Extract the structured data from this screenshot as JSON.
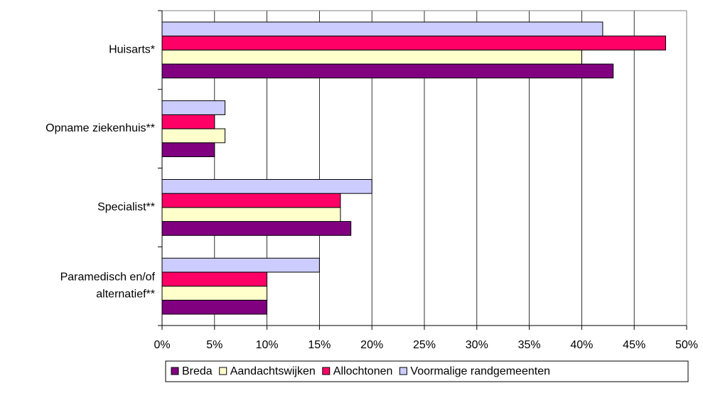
{
  "chart_data": {
    "type": "hbar",
    "categories": [
      "Huisarts*",
      "Opname ziekenhuis**",
      "Specialist**",
      "Paramedisch en/of alternatief**"
    ],
    "series": [
      {
        "name": "Breda",
        "color": "#800080",
        "values": [
          43,
          5,
          18,
          10
        ]
      },
      {
        "name": "Aandachtswijken",
        "color": "#ffffcc",
        "values": [
          40,
          6,
          17,
          10
        ]
      },
      {
        "name": "Allochtonen",
        "color": "#ff0066",
        "values": [
          48,
          5,
          17,
          10
        ]
      },
      {
        "name": "Voormalige randgemeenten",
        "color": "#ccccff",
        "values": [
          42,
          6,
          20,
          15
        ]
      }
    ],
    "xlim": [
      0,
      50
    ],
    "xticks": [
      {
        "value": 0,
        "label": "0%"
      },
      {
        "value": 5,
        "label": "5%"
      },
      {
        "value": 10,
        "label": "10%"
      },
      {
        "value": 15,
        "label": "15%"
      },
      {
        "value": 20,
        "label": "20%"
      },
      {
        "value": 25,
        "label": "25%"
      },
      {
        "value": 30,
        "label": "30%"
      },
      {
        "value": 35,
        "label": "35%"
      },
      {
        "value": 40,
        "label": "40%"
      },
      {
        "value": 45,
        "label": "45%"
      },
      {
        "value": 50,
        "label": "50%"
      }
    ],
    "grid": true
  }
}
